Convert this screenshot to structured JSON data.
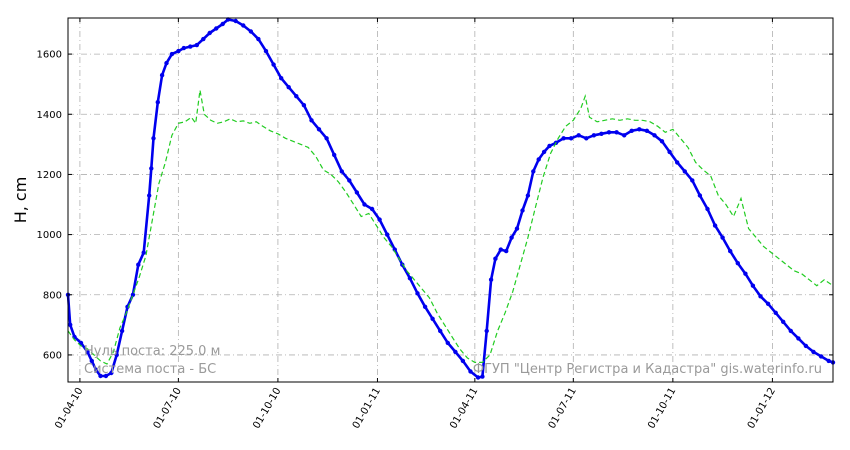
{
  "chart_data": {
    "type": "line",
    "ylabel": "H, cm",
    "xlabel": "",
    "ylim": [
      510,
      1720
    ],
    "x_range": [
      "2010-03-21",
      "2012-02-26"
    ],
    "grid": true,
    "y_ticks": [
      600,
      800,
      1000,
      1200,
      1400,
      1600
    ],
    "x_ticks": [
      "01-04-10",
      "01-07-10",
      "01-10-10",
      "01-01-11",
      "01-04-11",
      "01-07-11",
      "01-10-11",
      "01-01-12"
    ],
    "x_tick_dates": [
      "2010-04-01",
      "2010-07-01",
      "2010-10-01",
      "2011-01-01",
      "2011-04-01",
      "2011-07-01",
      "2011-10-01",
      "2012-01-01"
    ],
    "series": [
      {
        "color": "#0000ee",
        "style": "solid-thick-markers",
        "points": [
          [
            "2010-03-21",
            800
          ],
          [
            "2010-03-23",
            700
          ],
          [
            "2010-03-27",
            660
          ],
          [
            "2010-04-02",
            640
          ],
          [
            "2010-04-08",
            610
          ],
          [
            "2010-04-12",
            580
          ],
          [
            "2010-04-16",
            550
          ],
          [
            "2010-04-20",
            530
          ],
          [
            "2010-04-25",
            530
          ],
          [
            "2010-04-30",
            540
          ],
          [
            "2010-05-05",
            600
          ],
          [
            "2010-05-10",
            680
          ],
          [
            "2010-05-15",
            760
          ],
          [
            "2010-05-20",
            800
          ],
          [
            "2010-05-25",
            900
          ],
          [
            "2010-05-30",
            940
          ],
          [
            "2010-06-04",
            1130
          ],
          [
            "2010-06-06",
            1220
          ],
          [
            "2010-06-08",
            1320
          ],
          [
            "2010-06-12",
            1440
          ],
          [
            "2010-06-16",
            1530
          ],
          [
            "2010-06-20",
            1570
          ],
          [
            "2010-06-25",
            1600
          ],
          [
            "2010-07-01",
            1610
          ],
          [
            "2010-07-06",
            1620
          ],
          [
            "2010-07-12",
            1625
          ],
          [
            "2010-07-18",
            1630
          ],
          [
            "2010-07-24",
            1650
          ],
          [
            "2010-07-30",
            1670
          ],
          [
            "2010-08-05",
            1685
          ],
          [
            "2010-08-11",
            1700
          ],
          [
            "2010-08-16",
            1715
          ],
          [
            "2010-08-23",
            1710
          ],
          [
            "2010-08-30",
            1695
          ],
          [
            "2010-09-06",
            1675
          ],
          [
            "2010-09-13",
            1650
          ],
          [
            "2010-09-20",
            1610
          ],
          [
            "2010-09-27",
            1565
          ],
          [
            "2010-10-04",
            1520
          ],
          [
            "2010-10-11",
            1490
          ],
          [
            "2010-10-18",
            1460
          ],
          [
            "2010-10-25",
            1430
          ],
          [
            "2010-11-01",
            1380
          ],
          [
            "2010-11-08",
            1350
          ],
          [
            "2010-11-15",
            1320
          ],
          [
            "2010-11-22",
            1265
          ],
          [
            "2010-11-29",
            1210
          ],
          [
            "2010-12-06",
            1180
          ],
          [
            "2010-12-13",
            1140
          ],
          [
            "2010-12-20",
            1100
          ],
          [
            "2010-12-27",
            1085
          ],
          [
            "2011-01-03",
            1050
          ],
          [
            "2011-01-10",
            1000
          ],
          [
            "2011-01-17",
            950
          ],
          [
            "2011-01-24",
            900
          ],
          [
            "2011-01-31",
            855
          ],
          [
            "2011-02-07",
            805
          ],
          [
            "2011-02-14",
            760
          ],
          [
            "2011-02-21",
            720
          ],
          [
            "2011-02-28",
            680
          ],
          [
            "2011-03-07",
            640
          ],
          [
            "2011-03-14",
            610
          ],
          [
            "2011-03-21",
            580
          ],
          [
            "2011-03-28",
            545
          ],
          [
            "2011-04-04",
            525
          ],
          [
            "2011-04-08",
            528
          ],
          [
            "2011-04-12",
            680
          ],
          [
            "2011-04-16",
            850
          ],
          [
            "2011-04-20",
            920
          ],
          [
            "2011-04-25",
            950
          ],
          [
            "2011-04-30",
            945
          ],
          [
            "2011-05-05",
            990
          ],
          [
            "2011-05-10",
            1020
          ],
          [
            "2011-05-15",
            1080
          ],
          [
            "2011-05-20",
            1130
          ],
          [
            "2011-05-25",
            1210
          ],
          [
            "2011-05-30",
            1250
          ],
          [
            "2011-06-04",
            1275
          ],
          [
            "2011-06-09",
            1295
          ],
          [
            "2011-06-15",
            1305
          ],
          [
            "2011-06-22",
            1320
          ],
          [
            "2011-06-29",
            1320
          ],
          [
            "2011-07-06",
            1330
          ],
          [
            "2011-07-13",
            1320
          ],
          [
            "2011-07-20",
            1330
          ],
          [
            "2011-07-27",
            1335
          ],
          [
            "2011-08-03",
            1340
          ],
          [
            "2011-08-10",
            1340
          ],
          [
            "2011-08-17",
            1330
          ],
          [
            "2011-08-24",
            1345
          ],
          [
            "2011-08-31",
            1350
          ],
          [
            "2011-09-07",
            1345
          ],
          [
            "2011-09-14",
            1330
          ],
          [
            "2011-09-21",
            1310
          ],
          [
            "2011-09-28",
            1275
          ],
          [
            "2011-10-05",
            1240
          ],
          [
            "2011-10-12",
            1210
          ],
          [
            "2011-10-19",
            1180
          ],
          [
            "2011-10-26",
            1130
          ],
          [
            "2011-11-02",
            1085
          ],
          [
            "2011-11-09",
            1030
          ],
          [
            "2011-11-16",
            990
          ],
          [
            "2011-11-23",
            945
          ],
          [
            "2011-11-30",
            905
          ],
          [
            "2011-12-07",
            870
          ],
          [
            "2011-12-14",
            830
          ],
          [
            "2011-12-21",
            795
          ],
          [
            "2011-12-28",
            770
          ],
          [
            "2012-01-04",
            740
          ],
          [
            "2012-01-11",
            710
          ],
          [
            "2012-01-18",
            680
          ],
          [
            "2012-01-25",
            655
          ],
          [
            "2012-02-01",
            630
          ],
          [
            "2012-02-08",
            610
          ],
          [
            "2012-02-15",
            595
          ],
          [
            "2012-02-22",
            580
          ],
          [
            "2012-02-26",
            575
          ]
        ]
      },
      {
        "color": "#22cc22",
        "style": "dashed",
        "points": [
          [
            "2010-03-21",
            680
          ],
          [
            "2010-03-27",
            650
          ],
          [
            "2010-04-02",
            630
          ],
          [
            "2010-04-08",
            620
          ],
          [
            "2010-04-14",
            600
          ],
          [
            "2010-04-20",
            580
          ],
          [
            "2010-04-26",
            570
          ],
          [
            "2010-05-02",
            610
          ],
          [
            "2010-05-08",
            690
          ],
          [
            "2010-05-14",
            740
          ],
          [
            "2010-05-20",
            800
          ],
          [
            "2010-05-26",
            860
          ],
          [
            "2010-06-01",
            930
          ],
          [
            "2010-06-07",
            1050
          ],
          [
            "2010-06-13",
            1170
          ],
          [
            "2010-06-19",
            1240
          ],
          [
            "2010-06-25",
            1330
          ],
          [
            "2010-07-01",
            1370
          ],
          [
            "2010-07-07",
            1375
          ],
          [
            "2010-07-13",
            1390
          ],
          [
            "2010-07-17",
            1370
          ],
          [
            "2010-07-21",
            1480
          ],
          [
            "2010-07-25",
            1400
          ],
          [
            "2010-07-31",
            1380
          ],
          [
            "2010-08-06",
            1370
          ],
          [
            "2010-08-12",
            1375
          ],
          [
            "2010-08-18",
            1385
          ],
          [
            "2010-08-24",
            1375
          ],
          [
            "2010-08-30",
            1378
          ],
          [
            "2010-09-05",
            1370
          ],
          [
            "2010-09-11",
            1375
          ],
          [
            "2010-09-17",
            1360
          ],
          [
            "2010-09-24",
            1345
          ],
          [
            "2010-10-01",
            1335
          ],
          [
            "2010-10-08",
            1320
          ],
          [
            "2010-10-15",
            1310
          ],
          [
            "2010-10-22",
            1300
          ],
          [
            "2010-10-29",
            1290
          ],
          [
            "2010-11-05",
            1260
          ],
          [
            "2010-11-12",
            1215
          ],
          [
            "2010-11-19",
            1200
          ],
          [
            "2010-11-26",
            1175
          ],
          [
            "2010-12-03",
            1140
          ],
          [
            "2010-12-10",
            1100
          ],
          [
            "2010-12-17",
            1060
          ],
          [
            "2010-12-24",
            1070
          ],
          [
            "2010-12-31",
            1030
          ],
          [
            "2011-01-07",
            990
          ],
          [
            "2011-01-14",
            960
          ],
          [
            "2011-01-21",
            920
          ],
          [
            "2011-01-28",
            880
          ],
          [
            "2011-02-04",
            850
          ],
          [
            "2011-02-11",
            820
          ],
          [
            "2011-02-18",
            790
          ],
          [
            "2011-02-25",
            740
          ],
          [
            "2011-03-04",
            700
          ],
          [
            "2011-03-11",
            660
          ],
          [
            "2011-03-18",
            620
          ],
          [
            "2011-03-25",
            590
          ],
          [
            "2011-04-01",
            575
          ],
          [
            "2011-04-08",
            575
          ],
          [
            "2011-04-15",
            600
          ],
          [
            "2011-04-22",
            680
          ],
          [
            "2011-04-29",
            740
          ],
          [
            "2011-05-06",
            810
          ],
          [
            "2011-05-13",
            900
          ],
          [
            "2011-05-20",
            990
          ],
          [
            "2011-05-27",
            1090
          ],
          [
            "2011-06-03",
            1190
          ],
          [
            "2011-06-10",
            1270
          ],
          [
            "2011-06-17",
            1320
          ],
          [
            "2011-06-24",
            1360
          ],
          [
            "2011-07-01",
            1380
          ],
          [
            "2011-07-08",
            1420
          ],
          [
            "2011-07-12",
            1460
          ],
          [
            "2011-07-16",
            1390
          ],
          [
            "2011-07-23",
            1375
          ],
          [
            "2011-07-30",
            1380
          ],
          [
            "2011-08-06",
            1385
          ],
          [
            "2011-08-13",
            1380
          ],
          [
            "2011-08-20",
            1385
          ],
          [
            "2011-08-27",
            1380
          ],
          [
            "2011-09-03",
            1380
          ],
          [
            "2011-09-10",
            1375
          ],
          [
            "2011-09-17",
            1360
          ],
          [
            "2011-09-24",
            1340
          ],
          [
            "2011-10-01",
            1350
          ],
          [
            "2011-10-08",
            1320
          ],
          [
            "2011-10-15",
            1290
          ],
          [
            "2011-10-22",
            1240
          ],
          [
            "2011-10-29",
            1215
          ],
          [
            "2011-11-05",
            1195
          ],
          [
            "2011-11-12",
            1130
          ],
          [
            "2011-11-19",
            1100
          ],
          [
            "2011-11-26",
            1060
          ],
          [
            "2011-12-03",
            1120
          ],
          [
            "2011-12-10",
            1020
          ],
          [
            "2011-12-17",
            990
          ],
          [
            "2011-12-24",
            960
          ],
          [
            "2011-12-31",
            940
          ],
          [
            "2012-01-07",
            920
          ],
          [
            "2012-01-14",
            900
          ],
          [
            "2012-01-21",
            880
          ],
          [
            "2012-01-28",
            870
          ],
          [
            "2012-02-04",
            850
          ],
          [
            "2012-02-11",
            830
          ],
          [
            "2012-02-18",
            850
          ],
          [
            "2012-02-26",
            830
          ]
        ]
      }
    ]
  },
  "watermark": {
    "zero_label": "Нуль поста: 225.0 м",
    "system_label": "Система поста - БС",
    "source_label": "ФГУП \"Центр Регистра и Кадастра\"   gis.waterinfo.ru"
  }
}
